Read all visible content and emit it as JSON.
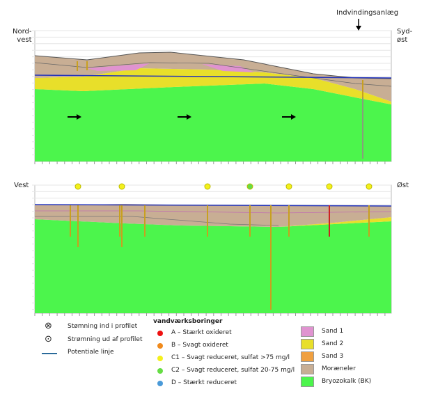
{
  "top_section": {
    "left_label_1": "Nord-",
    "left_label_2": "vest",
    "right_label_1": "Syd-",
    "right_label_2": "øst",
    "annotation": "Indvindingsanlæg"
  },
  "bottom_section": {
    "left_label": "Vest",
    "right_label": "Øst",
    "well_status": [
      "C1",
      "C1",
      "C1",
      "C2",
      "C1",
      "C1",
      "C1"
    ]
  },
  "legend": {
    "flow_in": "Stømning ind i profilet",
    "flow_out": "Strømning ud af profilet",
    "potential": "Potentiale linje",
    "wells_title": "vandværksboringer",
    "wells": [
      {
        "label": "A – Stærkt oxideret",
        "color": "#ee1111"
      },
      {
        "label": "B – Svagt oxideret",
        "color": "#f08a1c"
      },
      {
        "label": "C1 – Svagt reduceret, sulfat >75 mg/l",
        "color": "#f4f01c"
      },
      {
        "label": "C2 – Svagt reduceret, sulfat 20-75 mg/l",
        "color": "#66dd44"
      },
      {
        "label": "D – Stærkt reduceret",
        "color": "#4a9ad8"
      }
    ],
    "layers": [
      {
        "label": "Sand 1",
        "color": "#e093d0"
      },
      {
        "label": "Sand 2",
        "color": "#e8df2a"
      },
      {
        "label": "Sand 3",
        "color": "#f0a040"
      },
      {
        "label": "Moræneler",
        "color": "#c8ae94"
      },
      {
        "label": "Bryozokalk (BK)",
        "color": "#4cf54c"
      }
    ]
  }
}
